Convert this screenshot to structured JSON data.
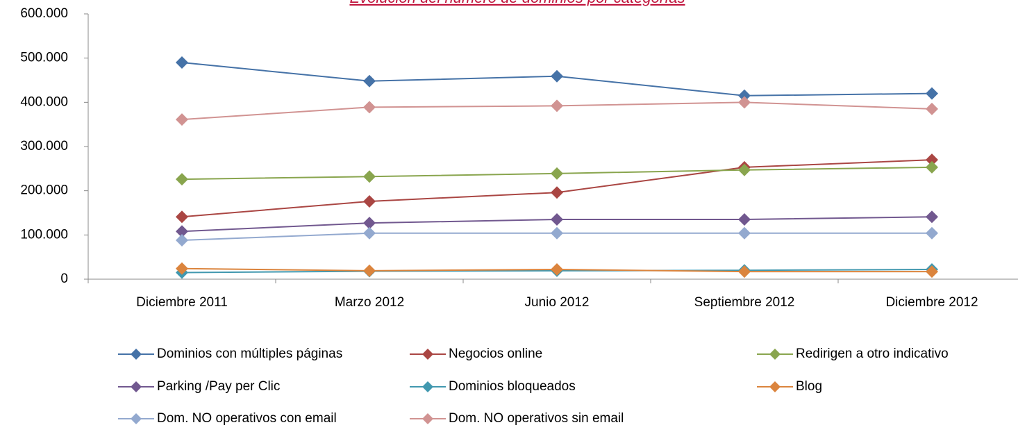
{
  "chart_data": {
    "type": "line",
    "title": "Evolución del número de dominios por categorías",
    "categories": [
      "Diciembre 2011",
      "Marzo 2012",
      "Junio 2012",
      "Septiembre 2012",
      "Diciembre 2012"
    ],
    "series": [
      {
        "name": "Dominios con múltiples páginas",
        "color": "#4572a7",
        "values": [
          490000,
          448000,
          459000,
          415000,
          420000
        ]
      },
      {
        "name": "Negocios online",
        "color": "#aa4643",
        "values": [
          141000,
          176000,
          196000,
          253000,
          270000
        ]
      },
      {
        "name": "Redirigen a otro indicativo",
        "color": "#89a54e",
        "values": [
          226000,
          232000,
          239000,
          247000,
          253000
        ]
      },
      {
        "name": "Parking /Pay per Clic",
        "color": "#71588f",
        "values": [
          108000,
          127000,
          135000,
          135000,
          141000
        ]
      },
      {
        "name": "Dominios bloqueados",
        "color": "#4198af",
        "values": [
          15000,
          18000,
          19000,
          20000,
          22000
        ]
      },
      {
        "name": "Blog",
        "color": "#db843d",
        "values": [
          24000,
          19000,
          22000,
          17000,
          17000
        ]
      },
      {
        "name": "Dom. NO operativos con email",
        "color": "#93a9cf",
        "values": [
          88000,
          104000,
          104000,
          104000,
          104000
        ]
      },
      {
        "name": "Dom. NO operativos sin email",
        "color": "#d19392",
        "values": [
          361000,
          389000,
          392000,
          400000,
          385000
        ]
      }
    ],
    "ylim": [
      0,
      600000
    ],
    "yticks": [
      0,
      {
        "value": 100000,
        "label": "100.000"
      },
      {
        "value": 200000,
        "label": "200.000"
      },
      {
        "value": 300000,
        "label": "300.000"
      },
      {
        "value": 400000,
        "label": "400.000"
      },
      {
        "value": 500000,
        "label": "500.000"
      },
      {
        "value": 600000,
        "label": "600.000"
      }
    ],
    "grid": false,
    "legend": "bottom"
  }
}
